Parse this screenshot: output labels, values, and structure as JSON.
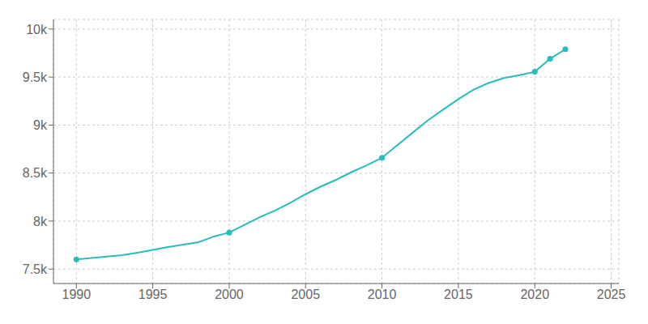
{
  "chart_data": {
    "type": "line",
    "series": [
      {
        "type": "line",
        "color": "#29bcbd",
        "x": [
          1990,
          1991,
          1992,
          1993,
          1994,
          1995,
          1996,
          1997,
          1998,
          1999,
          2000,
          2001,
          2002,
          2003,
          2004,
          2005,
          2006,
          2007,
          2008,
          2009,
          2010,
          2011,
          2012,
          2013,
          2014,
          2015,
          2016,
          2017,
          2018,
          2019,
          2020,
          2021,
          2022
        ],
        "values": [
          7600,
          7615,
          7630,
          7645,
          7670,
          7700,
          7730,
          7755,
          7780,
          7840,
          7880,
          7960,
          8040,
          8110,
          8190,
          8280,
          8360,
          8430,
          8510,
          8580,
          8660,
          8790,
          8920,
          9050,
          9160,
          9270,
          9370,
          9440,
          9490,
          9520,
          9555,
          9690,
          9790
        ]
      },
      {
        "type": "scatter",
        "color": "#29bcbd",
        "marker": "circle",
        "x": [
          1990,
          2000,
          2010,
          2020,
          2021,
          2022
        ],
        "values": [
          7600,
          7880,
          8660,
          9555,
          9690,
          9790
        ]
      }
    ],
    "xlim": [
      1988.5,
      2025.5
    ],
    "xticks": [
      1990,
      1995,
      2000,
      2005,
      2010,
      2015,
      2020,
      2025
    ],
    "ylim": [
      7350,
      10100
    ],
    "yticks": [
      {
        "value": 7500,
        "label": "7.5k"
      },
      {
        "value": 8000,
        "label": "8k"
      },
      {
        "value": 8500,
        "label": "8.5k"
      },
      {
        "value": 9000,
        "label": "9k"
      },
      {
        "value": 9500,
        "label": "9.5k"
      },
      {
        "value": 10000,
        "label": "10k"
      }
    ],
    "grid": true
  }
}
